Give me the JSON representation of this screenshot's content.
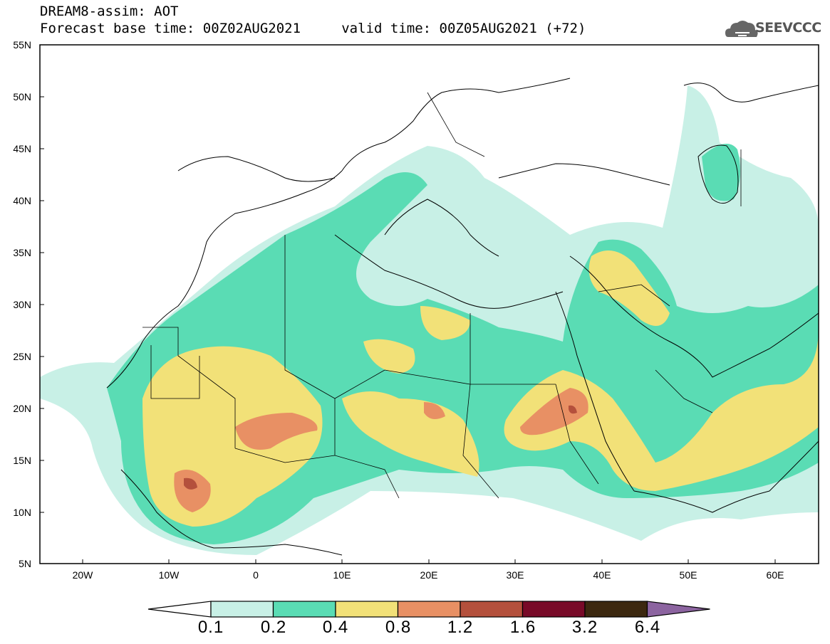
{
  "header": {
    "line1": "DREAM8-assim: AOT",
    "line2": "Forecast base time: 00Z02AUG2021     valid time: 00Z05AUG2021 (+72)"
  },
  "logo": {
    "text": "SEEVCCC",
    "icon": "cloud-icon"
  },
  "map": {
    "lat_labels": [
      "55N",
      "50N",
      "45N",
      "40N",
      "35N",
      "30N",
      "25N",
      "20N",
      "15N",
      "10N",
      "5N"
    ],
    "lon_labels": [
      "20W",
      "10W",
      "0",
      "10E",
      "20E",
      "30E",
      "40E",
      "50E",
      "60E"
    ],
    "lon_range": [
      -25,
      65
    ],
    "lat_range": [
      5,
      55
    ]
  },
  "colorbar": {
    "labels": [
      "0.1",
      "0.2",
      "0.4",
      "0.8",
      "1.2",
      "1.6",
      "3.2",
      "6.4"
    ],
    "colors": [
      "#ffffff",
      "#c8f0e6",
      "#5adcb4",
      "#f2e178",
      "#e89064",
      "#b4503c",
      "#780a28",
      "#3c280f",
      "#8c64a0"
    ]
  }
}
